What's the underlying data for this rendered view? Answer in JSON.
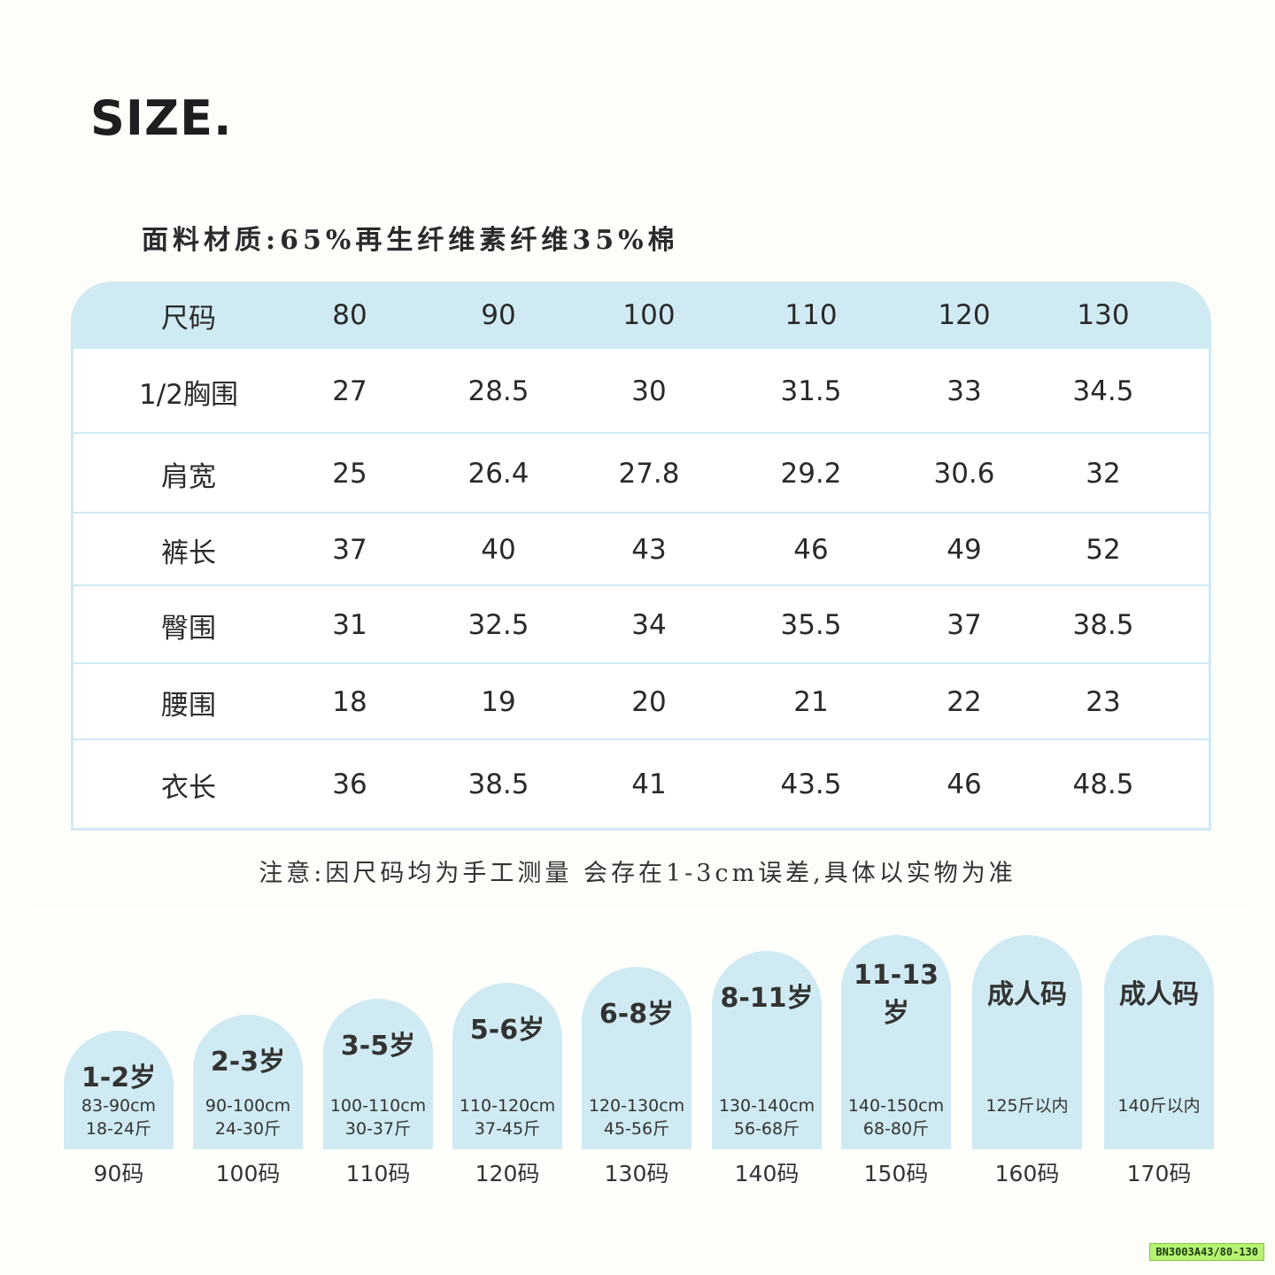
{
  "title": "SIZE.",
  "fabric": "面料材质:65%再生纤维素纤维35%棉",
  "table": {
    "header": [
      "尺码",
      "80",
      "90",
      "100",
      "110",
      "120",
      "130"
    ],
    "rows": [
      [
        "1/2胸围",
        "27",
        "28.5",
        "30",
        "31.5",
        "33",
        "34.5"
      ],
      [
        "肩宽",
        "25",
        "26.4",
        "27.8",
        "29.2",
        "30.6",
        "32"
      ],
      [
        "裤长",
        "37",
        "40",
        "43",
        "46",
        "49",
        "52"
      ],
      [
        "臀围",
        "31",
        "32.5",
        "34",
        "35.5",
        "37",
        "38.5"
      ],
      [
        "腰围",
        "18",
        "19",
        "20",
        "21",
        "22",
        "23"
      ],
      [
        "衣长",
        "36",
        "38.5",
        "41",
        "43.5",
        "46",
        "48.5"
      ]
    ]
  },
  "note": "注意:因尺码均为手工测量 会存在1-3cm误差,具体以实物为准",
  "guide": [
    {
      "age": "1-2岁",
      "height": "83-90cm",
      "weight": "18-24斤",
      "code": "90码"
    },
    {
      "age": "2-3岁",
      "height": "90-100cm",
      "weight": "24-30斤",
      "code": "100码"
    },
    {
      "age": "3-5岁",
      "height": "100-110cm",
      "weight": "30-37斤",
      "code": "110码"
    },
    {
      "age": "5-6岁",
      "height": "110-120cm",
      "weight": "37-45斤",
      "code": "120码"
    },
    {
      "age": "6-8岁",
      "height": "120-130cm",
      "weight": "45-56斤",
      "code": "130码"
    },
    {
      "age": "8-11岁",
      "height": "130-140cm",
      "weight": "56-68斤",
      "code": "140码"
    },
    {
      "age": "11-13岁",
      "height": "140-150cm",
      "weight": "68-80斤",
      "code": "150码"
    },
    {
      "age": "成人码",
      "height": "125斤以内",
      "weight": "",
      "code": "160码"
    },
    {
      "age": "成人码",
      "height": "140斤以内",
      "weight": "",
      "code": "170码"
    }
  ],
  "sku_tag": "BN3003A43/80-130"
}
